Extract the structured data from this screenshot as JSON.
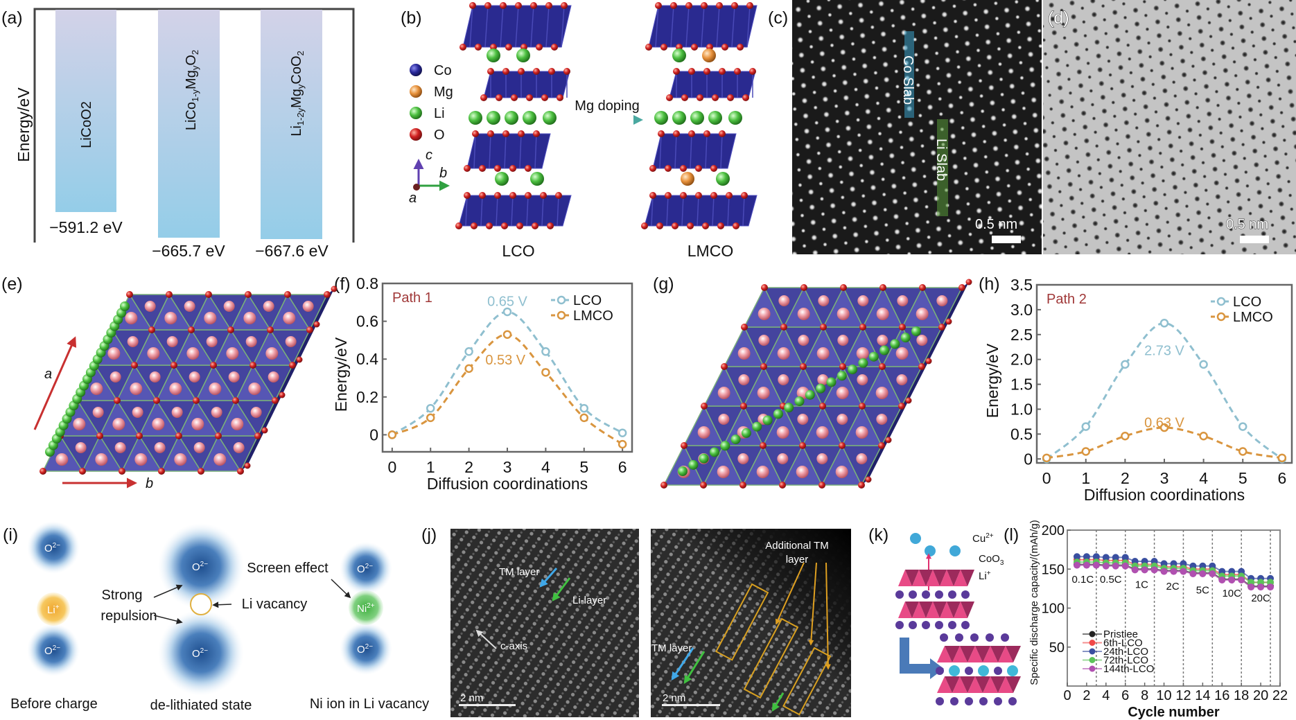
{
  "panel_labels": {
    "a": "(a)",
    "b": "(b)",
    "c": "(c)",
    "d": "(d)",
    "e": "(e)",
    "f": "(f)",
    "g": "(g)",
    "h": "(h)",
    "i": "(i)",
    "j": "(j)",
    "k": "(k)",
    "l": "(l)"
  },
  "panel_a": {
    "ylabel": "Energy/eV",
    "bars": [
      {
        "name": "LiCoO2",
        "parts": [
          [
            "LiCoO2",
            ""
          ]
        ],
        "energy": "−591.2 eV",
        "value": -591.2
      },
      {
        "name": "LiCo1-yMgyO2",
        "parts": [
          [
            "LiCo",
            "1-y"
          ],
          [
            "Mg",
            "y"
          ],
          [
            "O",
            "2"
          ]
        ],
        "energy": "−665.7 eV",
        "value": -665.7
      },
      {
        "name": "Li1-2yMgyCoO2",
        "parts": [
          [
            "Li",
            "1-2y"
          ],
          [
            "Mg",
            "y"
          ],
          [
            "CoO",
            "2"
          ]
        ],
        "energy": "−667.6 eV",
        "value": -667.6
      }
    ]
  },
  "panel_b": {
    "legend": [
      {
        "label": "Co",
        "color": "#2a2a8c"
      },
      {
        "label": "Mg",
        "color": "#e08a3c"
      },
      {
        "label": "Li",
        "color": "#5cbf4a"
      },
      {
        "label": "O",
        "color": "#c02020"
      }
    ],
    "axis_c": "c",
    "axis_b": "b",
    "axis_a": "a",
    "arrow_label": "Mg doping",
    "left_label": "LCO",
    "right_label": "LMCO"
  },
  "panel_c": {
    "co_slab": "Co Slab",
    "li_slab": "Li Slab",
    "scale": "0.5 nm"
  },
  "panel_d": {
    "scale": "0.5 nm"
  },
  "panel_e": {
    "axis_a": "a",
    "axis_b": "b"
  },
  "panel_i": {
    "o_ion": "O",
    "o_charge": "2−",
    "li_ion": "Li",
    "li_charge": "+",
    "ni_ion": "Ni",
    "ni_charge": "2+",
    "strong": "Strong",
    "repulsion": "repulsion",
    "screen_effect": "Screen effect",
    "li_vacancy": "Li vacancy",
    "before_charge": "Before charge",
    "delithiated": "de-lithiated state",
    "ni_in_vacancy": "Ni ion in Li vacancy"
  },
  "panel_j": {
    "tm_layer": "TM layer",
    "li_layer": "Li-layer",
    "c_axis": "c-axis",
    "scale": "2 nm",
    "additional_1": "Additional TM",
    "additional_2": "layer",
    "tm_layer_right": "TM layer",
    "scale_right": "2 nm"
  },
  "panel_k": {
    "cu": "Cu",
    "cu_sup": "2+",
    "coo": "CoO",
    "coo_sub": "3",
    "li": "Li",
    "li_sup": "+"
  },
  "chart_data": [
    {
      "id": "f",
      "type": "line",
      "title": "Path 1",
      "xlabel": "Diffusion coordinations",
      "ylabel": "Energy/eV",
      "x": [
        0,
        1,
        2,
        3,
        4,
        5,
        6
      ],
      "xlim": [
        -0.25,
        6.25
      ],
      "ylim": [
        -0.09,
        0.8
      ],
      "xticks": [
        0,
        1,
        2,
        3,
        4,
        5,
        6
      ],
      "yticks": [
        {
          "v": 0,
          "label": "0"
        },
        {
          "v": 0.2,
          "label": "0.2"
        },
        {
          "v": 0.4,
          "label": "0.4"
        },
        {
          "v": 0.6,
          "label": "0.6"
        },
        {
          "v": 0.8,
          "label": "0.8"
        }
      ],
      "legend_position": "top-right",
      "series": [
        {
          "name": "LCO",
          "color": "#8fbfcf",
          "values": [
            0,
            0.14,
            0.44,
            0.65,
            0.44,
            0.14,
            0.01
          ]
        },
        {
          "name": "LMCO",
          "color": "#d9953f",
          "values": [
            0,
            0.09,
            0.35,
            0.53,
            0.33,
            0.09,
            -0.05
          ]
        }
      ],
      "annotations": [
        {
          "text": "0.65 V",
          "x": 3,
          "y": 0.71,
          "series": 0
        },
        {
          "text": "0.53 V",
          "x": 2.95,
          "y": 0.4,
          "series": 1
        }
      ]
    },
    {
      "id": "h",
      "type": "line",
      "title": "Path 2",
      "xlabel": "Diffusion coordinations",
      "ylabel": "Energy/eV",
      "x": [
        0,
        1,
        2,
        3,
        4,
        5,
        6
      ],
      "xlim": [
        -0.25,
        6.25
      ],
      "ylim": [
        -0.08,
        3.5
      ],
      "xticks": [
        0,
        1,
        2,
        3,
        4,
        5,
        6
      ],
      "yticks": [
        {
          "v": 0,
          "label": "0"
        },
        {
          "v": 0.5,
          "label": "0.5"
        },
        {
          "v": 1,
          "label": "1.0"
        },
        {
          "v": 1.5,
          "label": "1.5"
        },
        {
          "v": 2,
          "label": "2.0"
        },
        {
          "v": 2.5,
          "label": "2.5"
        },
        {
          "v": 3,
          "label": "3.0"
        },
        {
          "v": 3.5,
          "label": "3.5"
        }
      ],
      "legend_position": "top-right",
      "series": [
        {
          "name": "LCO",
          "color": "#8fbfcf",
          "values": [
            0,
            0.65,
            1.9,
            2.73,
            1.9,
            0.65,
            0
          ]
        },
        {
          "name": "LMCO",
          "color": "#d9953f",
          "values": [
            0.02,
            0.15,
            0.46,
            0.63,
            0.46,
            0.15,
            0.02
          ]
        }
      ],
      "annotations": [
        {
          "text": "2.73 V",
          "x": 3,
          "y": 2.2,
          "series": 0
        },
        {
          "text": "0.63 V",
          "x": 3,
          "y": 0.75,
          "series": 1
        }
      ]
    },
    {
      "id": "l",
      "type": "line",
      "xlabel": "Cycle number",
      "ylabel": "Specific discharge capacity/(mAh/g)",
      "xlim": [
        0,
        22
      ],
      "ylim": [
        0,
        200
      ],
      "xticks": [
        0,
        2,
        4,
        6,
        8,
        10,
        12,
        14,
        16,
        18,
        20,
        22
      ],
      "yticks": [
        {
          "v": 50,
          "label": "50"
        },
        {
          "v": 100,
          "label": "100"
        },
        {
          "v": 150,
          "label": "150"
        },
        {
          "v": 200,
          "label": "200"
        }
      ],
      "x": [
        1,
        2,
        3,
        4,
        5,
        6,
        7,
        8,
        9,
        10,
        11,
        12,
        13,
        14,
        15,
        16,
        17,
        18,
        19,
        20,
        21
      ],
      "rate_dividers": [
        3,
        6,
        9,
        12,
        15,
        18,
        21
      ],
      "rate_labels": [
        {
          "text": "0.1C",
          "x": 1.6,
          "y": 138
        },
        {
          "text": "0.5C",
          "x": 4.5,
          "y": 138
        },
        {
          "text": "1C",
          "x": 7.7,
          "y": 131
        },
        {
          "text": "2C",
          "x": 10.9,
          "y": 129
        },
        {
          "text": "5C",
          "x": 14,
          "y": 124
        },
        {
          "text": "10C",
          "x": 17,
          "y": 120
        },
        {
          "text": "20C",
          "x": 20,
          "y": 114
        }
      ],
      "legend_position": "bottom-left",
      "series": [
        {
          "name": "Pristiee",
          "color": "#222222",
          "values": [
            156,
            156,
            156,
            155,
            155,
            155,
            150,
            150,
            150,
            148,
            148,
            148,
            145,
            145,
            145,
            137,
            137,
            137,
            128,
            128,
            128
          ]
        },
        {
          "name": "6th-LCO",
          "color": "#f04848",
          "values": [
            162,
            162,
            162,
            161,
            161,
            161,
            156,
            156,
            156,
            153,
            153,
            153,
            150,
            150,
            150,
            143,
            143,
            143,
            133,
            133,
            133
          ]
        },
        {
          "name": "24th-LCO",
          "color": "#3a4fa0",
          "values": [
            166,
            166,
            166,
            165,
            165,
            165,
            160,
            160,
            160,
            157,
            157,
            157,
            154,
            154,
            154,
            147,
            147,
            147,
            138,
            138,
            138
          ]
        },
        {
          "name": "72th-LCO",
          "color": "#5cc35a",
          "values": [
            159,
            159,
            159,
            158,
            158,
            158,
            154,
            154,
            154,
            151,
            151,
            151,
            148,
            148,
            148,
            141,
            141,
            141,
            133,
            133,
            133
          ]
        },
        {
          "name": "144th-LCO",
          "color": "#b050b0",
          "values": [
            155,
            155,
            155,
            154,
            154,
            154,
            149,
            149,
            149,
            147,
            147,
            147,
            144,
            144,
            144,
            136,
            136,
            136,
            127,
            127,
            127
          ]
        }
      ]
    }
  ]
}
